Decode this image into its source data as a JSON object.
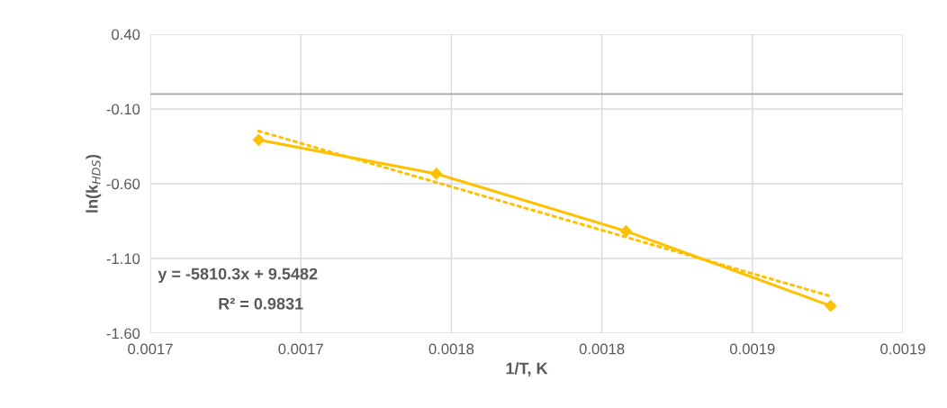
{
  "chart_data": {
    "type": "line",
    "xlabel": "1/T, K",
    "ylabel": "ln(k$_{HDS}$)",
    "series": [
      {
        "color": "#ffc000",
        "marker": "diamond",
        "line_style": "solid",
        "x": [
          0.001686,
          0.001745,
          0.001808,
          0.001876
        ],
        "values": [
          -0.307,
          -0.533,
          -0.917,
          -1.417
        ]
      },
      {
        "type": "line",
        "color": "#ffc000",
        "marker": "none",
        "line_style": "dotted",
        "x": [
          0.001686,
          0.001876
        ],
        "values": [
          -0.248,
          -1.352
        ]
      }
    ],
    "xlim": [
      0.00165,
      0.0019
    ],
    "xticks": [
      {
        "value": 0.00165,
        "label": "0.0017"
      },
      {
        "value": 0.0017,
        "label": "0.0017"
      },
      {
        "value": 0.00175,
        "label": "0.0018"
      },
      {
        "value": 0.0018,
        "label": "0.0018"
      },
      {
        "value": 0.00185,
        "label": "0.0019"
      },
      {
        "value": 0.0019,
        "label": "0.0019"
      }
    ],
    "ylim": [
      -1.6,
      0.4
    ],
    "yticks": [
      {
        "value": 0.4,
        "label": "0.40"
      },
      {
        "value": -0.1,
        "label": "-0.10"
      },
      {
        "value": -0.6,
        "label": "-0.60"
      },
      {
        "value": -1.1,
        "label": "-1.10"
      },
      {
        "value": -1.6,
        "label": "-1.60"
      }
    ],
    "ref_lines": [
      {
        "axis": "y",
        "value": 0,
        "color": "#a6a6a6"
      }
    ],
    "annotations": [
      "y = -5810.3x + 9.5482",
      "R² = 0.9831"
    ],
    "grid": true,
    "legend": false
  }
}
